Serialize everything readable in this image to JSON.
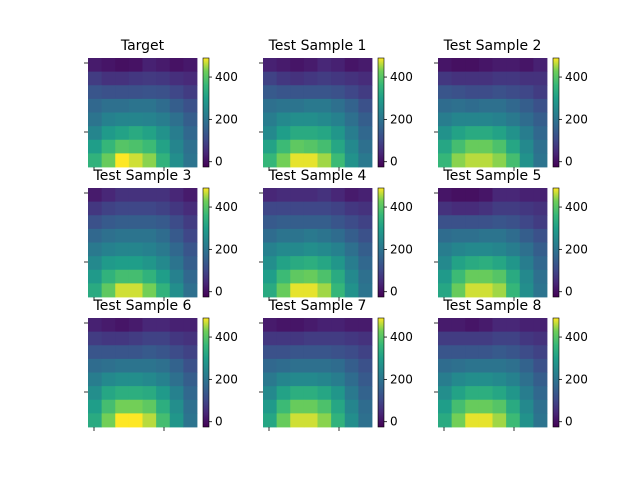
{
  "colorbar": {
    "ticks": [
      0,
      200,
      400
    ],
    "vmin": -25,
    "vmax": 490,
    "colormap": "viridis"
  },
  "chart_data": [
    {
      "type": "heatmap",
      "title": "Target",
      "values": [
        [
          20,
          10,
          0,
          5,
          30,
          20,
          5,
          15
        ],
        [
          80,
          60,
          60,
          70,
          75,
          70,
          55,
          45
        ],
        [
          130,
          120,
          120,
          120,
          125,
          120,
          100,
          80
        ],
        [
          170,
          190,
          190,
          200,
          200,
          180,
          150,
          120
        ],
        [
          200,
          230,
          240,
          240,
          235,
          220,
          190,
          150
        ],
        [
          240,
          290,
          310,
          330,
          310,
          270,
          220,
          170
        ],
        [
          300,
          360,
          400,
          390,
          370,
          310,
          240,
          190
        ],
        [
          350,
          420,
          490,
          470,
          440,
          350,
          260,
          200
        ]
      ]
    },
    {
      "type": "heatmap",
      "title": "Test Sample 1",
      "values": [
        [
          30,
          20,
          10,
          20,
          40,
          30,
          10,
          20
        ],
        [
          90,
          70,
          60,
          70,
          80,
          70,
          60,
          50
        ],
        [
          140,
          130,
          130,
          130,
          130,
          120,
          100,
          80
        ],
        [
          190,
          200,
          200,
          210,
          210,
          190,
          160,
          120
        ],
        [
          220,
          250,
          260,
          260,
          250,
          230,
          190,
          150
        ],
        [
          250,
          300,
          330,
          330,
          320,
          280,
          220,
          170
        ],
        [
          310,
          370,
          410,
          400,
          380,
          320,
          250,
          190
        ],
        [
          360,
          430,
          480,
          480,
          450,
          370,
          270,
          210
        ]
      ]
    },
    {
      "type": "heatmap",
      "title": "Test Sample 2",
      "values": [
        [
          10,
          0,
          0,
          10,
          20,
          20,
          10,
          30
        ],
        [
          70,
          60,
          60,
          60,
          70,
          70,
          60,
          60
        ],
        [
          130,
          120,
          110,
          110,
          120,
          110,
          100,
          80
        ],
        [
          180,
          190,
          180,
          190,
          190,
          170,
          150,
          120
        ],
        [
          220,
          240,
          240,
          240,
          230,
          210,
          180,
          150
        ],
        [
          270,
          310,
          330,
          330,
          310,
          270,
          220,
          170
        ],
        [
          320,
          380,
          420,
          420,
          390,
          320,
          250,
          190
        ],
        [
          360,
          440,
          460,
          460,
          440,
          380,
          270,
          200
        ]
      ]
    },
    {
      "type": "heatmap",
      "title": "Test Sample 3",
      "values": [
        [
          20,
          40,
          60,
          60,
          60,
          60,
          40,
          20
        ],
        [
          70,
          90,
          100,
          100,
          100,
          90,
          70,
          50
        ],
        [
          120,
          140,
          150,
          150,
          150,
          140,
          110,
          80
        ],
        [
          170,
          190,
          200,
          200,
          200,
          180,
          140,
          100
        ],
        [
          210,
          230,
          240,
          240,
          230,
          210,
          170,
          130
        ],
        [
          250,
          290,
          300,
          300,
          280,
          250,
          200,
          150
        ],
        [
          290,
          350,
          380,
          380,
          350,
          300,
          230,
          170
        ],
        [
          330,
          410,
          470,
          470,
          430,
          350,
          260,
          190
        ]
      ]
    },
    {
      "type": "heatmap",
      "title": "Test Sample 4",
      "values": [
        [
          40,
          50,
          50,
          50,
          60,
          40,
          20,
          30
        ],
        [
          100,
          100,
          100,
          100,
          100,
          90,
          70,
          60
        ],
        [
          140,
          150,
          150,
          150,
          150,
          130,
          110,
          90
        ],
        [
          180,
          200,
          200,
          210,
          200,
          180,
          150,
          120
        ],
        [
          230,
          250,
          250,
          260,
          250,
          230,
          190,
          150
        ],
        [
          260,
          310,
          330,
          340,
          320,
          280,
          220,
          170
        ],
        [
          300,
          370,
          410,
          420,
          390,
          330,
          250,
          190
        ],
        [
          330,
          420,
          480,
          480,
          450,
          360,
          270,
          200
        ]
      ]
    },
    {
      "type": "heatmap",
      "title": "Test Sample 5",
      "values": [
        [
          10,
          0,
          0,
          10,
          40,
          40,
          30,
          30
        ],
        [
          60,
          50,
          50,
          60,
          80,
          80,
          70,
          60
        ],
        [
          120,
          120,
          120,
          120,
          130,
          120,
          100,
          80
        ],
        [
          180,
          190,
          190,
          200,
          200,
          180,
          150,
          120
        ],
        [
          220,
          240,
          250,
          250,
          240,
          220,
          190,
          150
        ],
        [
          250,
          310,
          330,
          340,
          320,
          280,
          220,
          170
        ],
        [
          290,
          370,
          420,
          420,
          400,
          330,
          250,
          190
        ],
        [
          320,
          420,
          470,
          470,
          450,
          360,
          260,
          200
        ]
      ]
    },
    {
      "type": "heatmap",
      "title": "Test Sample 6",
      "values": [
        [
          30,
          20,
          10,
          20,
          40,
          40,
          30,
          30
        ],
        [
          80,
          70,
          70,
          80,
          90,
          90,
          70,
          60
        ],
        [
          130,
          130,
          130,
          130,
          140,
          130,
          110,
          90
        ],
        [
          180,
          190,
          200,
          200,
          200,
          190,
          160,
          120
        ],
        [
          220,
          250,
          260,
          260,
          250,
          230,
          190,
          150
        ],
        [
          260,
          320,
          340,
          340,
          330,
          290,
          230,
          170
        ],
        [
          300,
          380,
          430,
          430,
          410,
          340,
          260,
          190
        ],
        [
          330,
          430,
          490,
          490,
          460,
          380,
          280,
          200
        ]
      ]
    },
    {
      "type": "heatmap",
      "title": "Test Sample 7",
      "values": [
        [
          20,
          10,
          10,
          20,
          30,
          30,
          20,
          20
        ],
        [
          70,
          70,
          70,
          80,
          80,
          80,
          70,
          60
        ],
        [
          120,
          120,
          130,
          130,
          130,
          120,
          110,
          90
        ],
        [
          170,
          180,
          190,
          190,
          190,
          180,
          150,
          120
        ],
        [
          210,
          240,
          250,
          250,
          240,
          220,
          180,
          140
        ],
        [
          250,
          310,
          340,
          340,
          320,
          280,
          210,
          160
        ],
        [
          290,
          370,
          420,
          420,
          390,
          320,
          240,
          180
        ],
        [
          320,
          420,
          470,
          470,
          440,
          350,
          260,
          190
        ]
      ]
    },
    {
      "type": "heatmap",
      "title": "Test Sample 8",
      "values": [
        [
          20,
          20,
          10,
          20,
          40,
          40,
          30,
          30
        ],
        [
          80,
          80,
          80,
          80,
          90,
          90,
          70,
          60
        ],
        [
          130,
          130,
          130,
          130,
          140,
          130,
          110,
          90
        ],
        [
          180,
          190,
          200,
          200,
          200,
          190,
          160,
          120
        ],
        [
          220,
          250,
          260,
          260,
          250,
          230,
          190,
          150
        ],
        [
          260,
          310,
          340,
          340,
          320,
          280,
          220,
          170
        ],
        [
          300,
          380,
          420,
          420,
          400,
          330,
          250,
          190
        ],
        [
          330,
          430,
          480,
          480,
          450,
          370,
          270,
          200
        ]
      ]
    }
  ]
}
